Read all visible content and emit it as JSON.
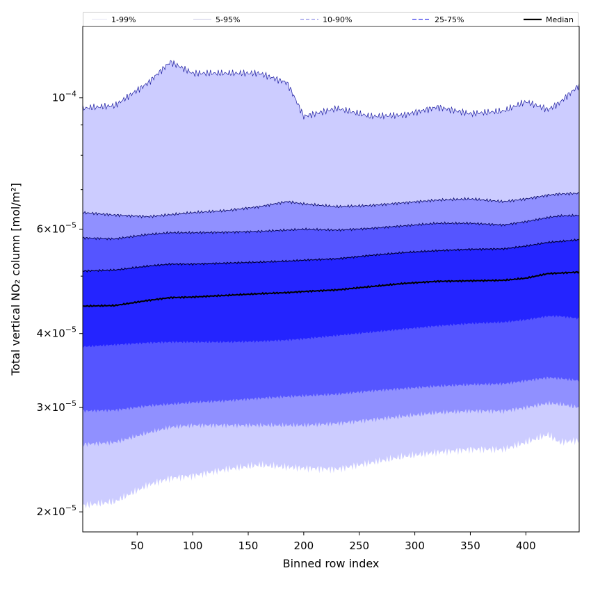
{
  "chart_data": {
    "type": "area",
    "title": "",
    "xlabel": "Binned row index",
    "ylabel": "Total vertical NO₂ column [mol/m²]",
    "xlim": [
      1,
      448
    ],
    "ylim": [
      1.85e-05,
      0.000132
    ],
    "yscale": "log",
    "x_ticks": [
      50,
      100,
      150,
      200,
      250,
      300,
      350,
      400
    ],
    "x_tick_labels": [
      "50",
      "100",
      "150",
      "200",
      "250",
      "300",
      "350",
      "400"
    ],
    "y_ticks": [
      {
        "value": 2e-05,
        "mant": "2",
        "exp": "−5"
      },
      {
        "value": 3e-05,
        "mant": "3",
        "exp": "−5"
      },
      {
        "value": 4e-05,
        "mant": "4",
        "exp": "−5"
      },
      {
        "value": 6e-05,
        "mant": "6",
        "exp": "−5"
      },
      {
        "value": 0.0001,
        "mant": "",
        "exp": "−4"
      }
    ],
    "x": [
      1,
      30,
      60,
      80,
      100,
      130,
      160,
      185,
      200,
      230,
      260,
      290,
      320,
      350,
      380,
      400,
      420,
      430,
      448
    ],
    "series": [
      {
        "name": "p01",
        "values": [
          2.05e-05,
          2.08e-05,
          2.22e-05,
          2.28e-05,
          2.3e-05,
          2.36e-05,
          2.4e-05,
          2.38e-05,
          2.37e-05,
          2.36e-05,
          2.42e-05,
          2.48e-05,
          2.52e-05,
          2.55e-05,
          2.55e-05,
          2.62e-05,
          2.7e-05,
          2.62e-05,
          2.64e-05
        ]
      },
      {
        "name": "p05",
        "values": [
          2.6e-05,
          2.62e-05,
          2.72e-05,
          2.78e-05,
          2.8e-05,
          2.8e-05,
          2.8e-05,
          2.8e-05,
          2.8e-05,
          2.82e-05,
          2.86e-05,
          2.9e-05,
          2.94e-05,
          2.96e-05,
          2.96e-05,
          3e-05,
          3.05e-05,
          3.04e-05,
          3e-05
        ]
      },
      {
        "name": "p10",
        "values": [
          2.96e-05,
          2.97e-05,
          3.02e-05,
          3.04e-05,
          3.06e-05,
          3.08e-05,
          3.11e-05,
          3.13e-05,
          3.14e-05,
          3.16e-05,
          3.2e-05,
          3.23e-05,
          3.26e-05,
          3.28e-05,
          3.29e-05,
          3.33e-05,
          3.37e-05,
          3.36e-05,
          3.33e-05
        ]
      },
      {
        "name": "p25",
        "values": [
          3.8e-05,
          3.83e-05,
          3.86e-05,
          3.87e-05,
          3.87e-05,
          3.87e-05,
          3.88e-05,
          3.9e-05,
          3.92e-05,
          3.97e-05,
          4.02e-05,
          4.07e-05,
          4.12e-05,
          4.16e-05,
          4.18e-05,
          4.22e-05,
          4.28e-05,
          4.28e-05,
          4.24e-05
        ]
      },
      {
        "name": "Median",
        "values": [
          4.45e-05,
          4.46e-05,
          4.55e-05,
          4.6e-05,
          4.61e-05,
          4.64e-05,
          4.67e-05,
          4.69e-05,
          4.71e-05,
          4.74e-05,
          4.8e-05,
          4.86e-05,
          4.9e-05,
          4.91e-05,
          4.92e-05,
          4.96e-05,
          5.05e-05,
          5.06e-05,
          5.08e-05
        ]
      },
      {
        "name": "p75",
        "values": [
          5.1e-05,
          5.12e-05,
          5.2e-05,
          5.24e-05,
          5.24e-05,
          5.26e-05,
          5.28e-05,
          5.3e-05,
          5.32e-05,
          5.35e-05,
          5.42e-05,
          5.48e-05,
          5.52e-05,
          5.55e-05,
          5.56e-05,
          5.62e-05,
          5.7e-05,
          5.72e-05,
          5.76e-05
        ]
      },
      {
        "name": "p90",
        "values": [
          5.8e-05,
          5.78e-05,
          5.88e-05,
          5.92e-05,
          5.92e-05,
          5.93e-05,
          5.95e-05,
          5.98e-05,
          6e-05,
          5.98e-05,
          6.02e-05,
          6.08e-05,
          6.14e-05,
          6.14e-05,
          6.1e-05,
          6.18e-05,
          6.28e-05,
          6.32e-05,
          6.33e-05
        ]
      },
      {
        "name": "p95",
        "values": [
          6.4e-05,
          6.34e-05,
          6.3e-05,
          6.35e-05,
          6.4e-05,
          6.45e-05,
          6.55e-05,
          6.68e-05,
          6.62e-05,
          6.55e-05,
          6.58e-05,
          6.65e-05,
          6.72e-05,
          6.75e-05,
          6.68e-05,
          6.75e-05,
          6.85e-05,
          6.88e-05,
          6.9e-05
        ]
      },
      {
        "name": "p99",
        "values": [
          9.6e-05,
          9.7e-05,
          0.000106,
          0.000115,
          0.00011,
          0.00011,
          0.00011,
          0.000106,
          9.3e-05,
          9.6e-05,
          9.3e-05,
          9.35e-05,
          9.65e-05,
          9.4e-05,
          9.5e-05,
          9.85e-05,
          9.55e-05,
          9.8e-05,
          0.000105
        ]
      }
    ],
    "bands": [
      {
        "lower": "p01",
        "upper": "p99",
        "color": "#ccccff"
      },
      {
        "lower": "p05",
        "upper": "p95",
        "color": "#9090ff"
      },
      {
        "lower": "p10",
        "upper": "p90",
        "color": "#5555ff"
      },
      {
        "lower": "p25",
        "upper": "p75",
        "color": "#2424ff"
      }
    ],
    "legend": {
      "position": "top",
      "entries": [
        {
          "label": "1-99%",
          "color": "#c8c8e8",
          "dash": "solid",
          "width": 0.6
        },
        {
          "label": "5-95%",
          "color": "#9090c8",
          "dash": "solid",
          "width": 0.6
        },
        {
          "label": "10-90%",
          "color": "#7070e0",
          "dash": "5,3",
          "width": 1
        },
        {
          "label": "25-75%",
          "color": "#5555ee",
          "dash": "6,3",
          "width": 1.4
        },
        {
          "label": "Median",
          "color": "#000000",
          "dash": "solid",
          "width": 2.2
        }
      ]
    }
  }
}
